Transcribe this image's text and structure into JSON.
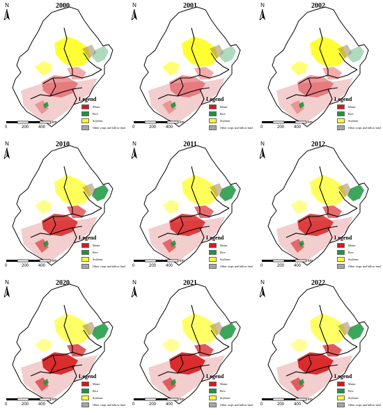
{
  "panels": [
    {
      "year": "2000"
    },
    {
      "year": "2001"
    },
    {
      "year": "2002"
    },
    {
      "year": "2010"
    },
    {
      "year": "2011"
    },
    {
      "year": "2012"
    },
    {
      "year": "2020"
    },
    {
      "year": "2021"
    },
    {
      "year": "2022"
    }
  ],
  "north_label": "N",
  "legend": {
    "title": "Legend",
    "items": [
      {
        "label": "Maize",
        "color": "#d7191c"
      },
      {
        "label": "Rice",
        "color": "#1a9641"
      },
      {
        "label": "Soybean",
        "color": "#ffff33"
      },
      {
        "label": "Other crops and fallow land",
        "color": "#a6a6a6"
      }
    ]
  },
  "scale_bar": {
    "ticks": [
      "0",
      "200",
      "400"
    ],
    "unit": "km"
  },
  "colors": {
    "maize": "#d7191c",
    "maize_light": "#e8a0a0",
    "rice": "#1a9641",
    "soybean": "#ffff33",
    "other": "#a6a6a6",
    "boundary": "#000000"
  }
}
